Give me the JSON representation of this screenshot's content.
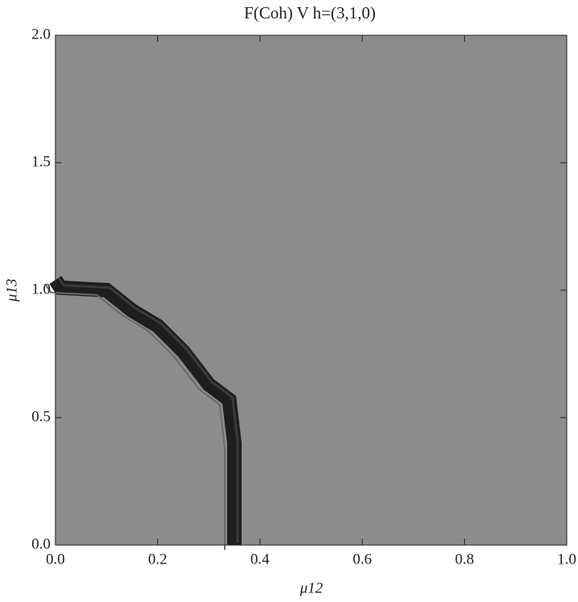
{
  "chart_data": {
    "type": "contour",
    "title": "F(Coh) V h=(3,1,0)",
    "x_label": "μ12",
    "y_label": "μ13",
    "xlim": [
      0,
      1
    ],
    "ylim": [
      0,
      2
    ],
    "xticks": [
      {
        "value": 0,
        "label": "0.0"
      },
      0.2,
      0.4,
      0.6,
      0.8,
      {
        "value": 1,
        "label": "1.0"
      }
    ],
    "yticks": [
      {
        "value": 0,
        "label": "0.0"
      },
      0.5,
      {
        "value": 1,
        "label": "1.0"
      },
      1.5,
      {
        "value": 2,
        "label": "2.0"
      }
    ],
    "background_color": "#8c8c8c",
    "boundary": {
      "color": "#1e1e1e",
      "x": [
        0,
        0.01,
        0.1,
        0.15,
        0.2,
        0.25,
        0.3,
        0.34,
        0.35,
        0.35,
        0.35
      ],
      "y": [
        1.04,
        1.01,
        1.0,
        0.92,
        0.86,
        0.76,
        0.63,
        0.57,
        0.4,
        0.2,
        0
      ]
    }
  }
}
